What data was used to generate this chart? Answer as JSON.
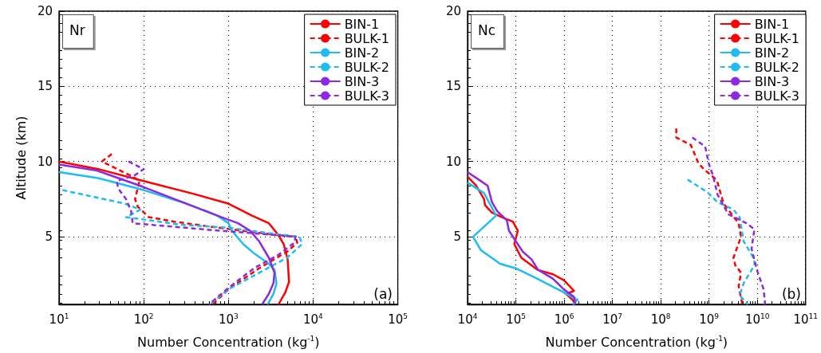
{
  "chart_data": [
    {
      "type": "line",
      "xlabel": "Number Concentration (kg$^{-1}$)",
      "ylabel": "Altitude (km)",
      "annotations": [
        "Nr",
        "(a)"
      ],
      "log": "x",
      "grid": true,
      "legend": "top right",
      "marker": "none",
      "xlim": [
        10,
        100000
      ],
      "xticks": [
        {
          "value": 10,
          "label": "10$^{1}$"
        },
        {
          "value": 100,
          "label": "10$^{2}$"
        },
        {
          "value": 1000,
          "label": "10$^{3}$"
        },
        {
          "value": 10000,
          "label": "10$^{4}$"
        },
        {
          "value": 100000,
          "label": "10$^{5}$"
        }
      ],
      "ylim": [
        0.5,
        20
      ],
      "yticks": [
        5,
        10,
        15,
        20
      ],
      "series": [
        {
          "name": "BIN-1",
          "color": "#ff0000",
          "line_style": "solid",
          "x": [
            10,
            29,
            100,
            360,
            1000,
            1900,
            3000,
            3900,
            4500,
            5000,
            5200,
            4700,
            3900
          ],
          "values": [
            10.0,
            9.5,
            8.7,
            7.9,
            7.2,
            6.4,
            5.9,
            5.1,
            4.5,
            3.5,
            2.0,
            1.3,
            0.5
          ]
        },
        {
          "name": "BULK-1",
          "color": "#ff0000",
          "line_style": "dashed",
          "x": [
            42,
            32,
            74,
            89,
            79,
            85,
            115,
            230,
            560,
            2000,
            3900,
            6200,
            6500,
            4900,
            2300,
            1000,
            650
          ],
          "values": [
            10.5,
            10.0,
            9.0,
            8.7,
            7.5,
            7.0,
            6.3,
            6.0,
            5.7,
            5.3,
            5.1,
            5.0,
            4.6,
            4.0,
            2.9,
            1.5,
            0.5
          ]
        },
        {
          "name": "BIN-2",
          "color": "#1ebcf0",
          "line_style": "solid",
          "x": [
            10,
            29,
            100,
            320,
            740,
            1000,
            1100,
            1500,
            2000,
            3000,
            3500,
            3700,
            3400,
            2900
          ],
          "values": [
            9.3,
            8.9,
            8.1,
            7.2,
            6.4,
            5.9,
            5.4,
            4.5,
            3.9,
            3.2,
            2.8,
            1.9,
            1.2,
            0.5
          ]
        },
        {
          "name": "BULK-2",
          "color": "#1ebcf0",
          "line_style": "dashed",
          "x": [
            11,
            60,
            91,
            62,
            115,
            270,
            1000,
            3400,
            6900,
            7400,
            4900,
            2300,
            1000,
            600
          ],
          "values": [
            8.1,
            7.2,
            6.8,
            6.3,
            6.1,
            5.8,
            5.6,
            5.2,
            5.0,
            4.5,
            3.6,
            2.6,
            1.5,
            0.5
          ]
        },
        {
          "name": "BIN-3",
          "color": "#8a2be2",
          "line_style": "solid",
          "x": [
            10,
            28,
            100,
            320,
            740,
            1300,
            1800,
            2300,
            3000,
            3500,
            3400,
            3000,
            2500
          ],
          "values": [
            9.8,
            9.4,
            8.3,
            7.2,
            6.4,
            5.9,
            5.4,
            4.7,
            3.6,
            2.6,
            1.9,
            1.2,
            0.5
          ]
        },
        {
          "name": "BULK-3",
          "color": "#8a2be2",
          "line_style": "dashed",
          "x": [
            66,
            100,
            79,
            48,
            50,
            62,
            71,
            74,
            190,
            790,
            2300,
            6200,
            6000,
            3900,
            2000,
            1000,
            590
          ],
          "values": [
            10.0,
            9.5,
            9.1,
            8.7,
            8.2,
            7.5,
            6.7,
            5.9,
            5.7,
            5.4,
            5.2,
            5.0,
            4.6,
            3.8,
            2.9,
            1.6,
            0.5
          ]
        }
      ]
    },
    {
      "type": "line",
      "xlabel": "Number Concentration (kg$^{-1}$)",
      "annotations": [
        "Nc",
        "(b)"
      ],
      "log": "x",
      "grid": true,
      "legend": "top right",
      "marker": "none",
      "xlim": [
        10000,
        100000000000
      ],
      "xticks": [
        {
          "value": 10000,
          "label": "10$^{4}$"
        },
        {
          "value": 100000,
          "label": "10$^{5}$"
        },
        {
          "value": 1000000,
          "label": "10$^{6}$"
        },
        {
          "value": 10000000,
          "label": "10$^{7}$"
        },
        {
          "value": 100000000,
          "label": "10$^{8}$"
        },
        {
          "value": 1000000000,
          "label": "10$^{9}$"
        },
        {
          "value": 10000000000,
          "label": "10$^{10}$"
        },
        {
          "value": 100000000000,
          "label": "10$^{11}$"
        }
      ],
      "ylim": [
        0.5,
        20
      ],
      "yticks": [
        5,
        10,
        15,
        20
      ],
      "series": [
        {
          "name": "BIN-1",
          "color": "#ff0000",
          "line_style": "solid",
          "x": [
            10000,
            15000,
            22000,
            23000,
            32000,
            60000,
            87000,
            110000,
            93000,
            130000,
            280000,
            590000,
            1000000,
            1600000,
            1100000,
            1500000,
            1700000
          ],
          "values": [
            9.0,
            8.4,
            7.5,
            7.1,
            6.6,
            6.2,
            6.0,
            5.4,
            4.5,
            3.6,
            2.8,
            2.5,
            2.1,
            1.4,
            1.2,
            0.8,
            0.5
          ]
        },
        {
          "name": "BULK-1",
          "color": "#ff0000",
          "line_style": "dashed",
          "x": [
            210000000,
            210000000,
            420000000,
            600000000,
            780000000,
            1300000000,
            1500000000,
            2000000000,
            4100000000,
            4600000000,
            3200000000,
            3500000000,
            4600000000,
            4100000000,
            4900000000
          ],
          "values": [
            12.2,
            11.6,
            11.1,
            9.9,
            9.5,
            8.9,
            8.6,
            7.2,
            5.9,
            5.0,
            3.6,
            3.1,
            2.6,
            1.7,
            0.5
          ]
        },
        {
          "name": "BIN-2",
          "color": "#1ebcf0",
          "line_style": "solid",
          "x": [
            10000,
            22000,
            39000,
            13000,
            19000,
            47000,
            100000,
            280000,
            980000,
            1900000,
            1500000
          ],
          "values": [
            8.6,
            7.9,
            6.4,
            5.0,
            4.1,
            3.2,
            2.9,
            2.2,
            1.3,
            0.8,
            0.5
          ]
        },
        {
          "name": "BULK-2",
          "color": "#1ebcf0",
          "line_style": "dashed",
          "x": [
            360000000,
            890000000,
            1500000000,
            3200000000,
            4300000000,
            5200000000,
            8700000000,
            8700000000,
            5200000000,
            4300000000,
            6300000000
          ],
          "values": [
            8.8,
            8.0,
            7.3,
            6.8,
            6.3,
            4.7,
            3.5,
            3.1,
            1.9,
            1.1,
            0.5
          ]
        },
        {
          "name": "BIN-3",
          "color": "#8a2be2",
          "line_style": "solid",
          "x": [
            10000,
            17000,
            26000,
            32000,
            41000,
            65000,
            72000,
            100000,
            140000,
            210000,
            290000,
            590000,
            980000,
            1600000,
            1700000
          ],
          "values": [
            9.3,
            8.8,
            8.4,
            7.3,
            6.7,
            6.1,
            5.4,
            4.7,
            4.0,
            3.5,
            2.8,
            2.2,
            1.5,
            1.0,
            0.5
          ]
        },
        {
          "name": "BULK-3",
          "color": "#8a2be2",
          "line_style": "dashed",
          "x": [
            450000000,
            830000000,
            1000000000,
            1200000000,
            1500000000,
            2500000000,
            5900000000,
            8700000000,
            7600000000,
            9800000000,
            13500000000,
            14500000000
          ],
          "values": [
            11.6,
            11.0,
            9.8,
            9.1,
            7.8,
            6.5,
            5.9,
            5.5,
            4.2,
            2.8,
            1.5,
            0.5
          ]
        }
      ]
    }
  ]
}
